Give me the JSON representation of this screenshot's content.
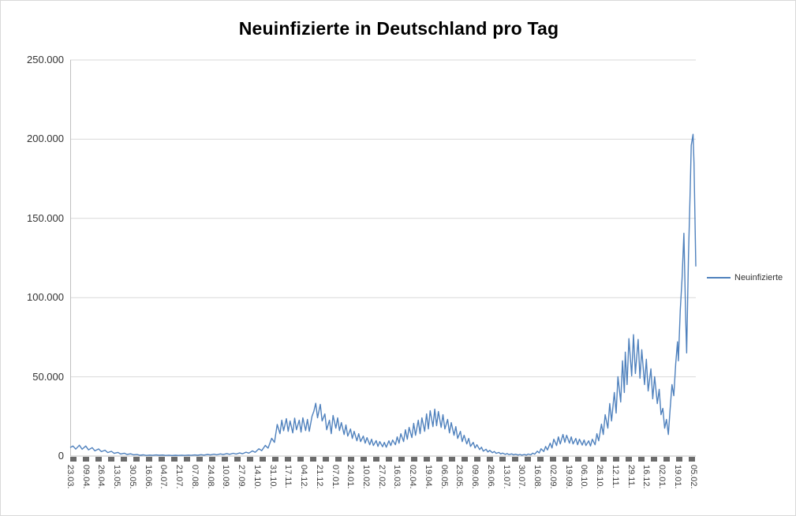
{
  "chart_data": {
    "type": "line",
    "title": "Neuinfizierte in Deutschland pro Tag",
    "xlabel": "",
    "ylabel": "",
    "ylim": [
      0,
      250000
    ],
    "grid": "horizontal",
    "legend_position": "right",
    "x_count": 684,
    "x_tick_step": 17,
    "y_tick_labels": [
      "0",
      "50.000",
      "100.000",
      "150.000",
      "200.000",
      "250.000"
    ],
    "x_tick_labels": [
      "23.03.",
      "09.04.",
      "26.04.",
      "13.05.",
      "30.05.",
      "16.06.",
      "04.07.",
      "21.07.",
      "07.08.",
      "24.08.",
      "10.09.",
      "27.09.",
      "14.10.",
      "31.10.",
      "17.11.",
      "04.12.",
      "21.12.",
      "07.01.",
      "24.01.",
      "10.02.",
      "27.02.",
      "16.03.",
      "02.04.",
      "19.04.",
      "06.05.",
      "23.05.",
      "09.06.",
      "26.06.",
      "13.07.",
      "30.07.",
      "16.08.",
      "02.09.",
      "19.09.",
      "06.10.",
      "26.10.",
      "12.11.",
      "29.11.",
      "16.12.",
      "02.01.",
      "19.01.",
      "05.02."
    ],
    "series": [
      {
        "name": "Neuinfizierte",
        "color": "#4F81BD",
        "points": [
          [
            0,
            5400
          ],
          [
            3,
            6300
          ],
          [
            6,
            4400
          ],
          [
            10,
            6800
          ],
          [
            13,
            4300
          ],
          [
            17,
            6300
          ],
          [
            20,
            3900
          ],
          [
            24,
            5300
          ],
          [
            27,
            3300
          ],
          [
            31,
            4500
          ],
          [
            34,
            2800
          ],
          [
            38,
            3700
          ],
          [
            41,
            2200
          ],
          [
            45,
            3000
          ],
          [
            48,
            1700
          ],
          [
            52,
            2300
          ],
          [
            55,
            1300
          ],
          [
            59,
            1800
          ],
          [
            62,
            1000
          ],
          [
            66,
            1400
          ],
          [
            69,
            800
          ],
          [
            73,
            950
          ],
          [
            76,
            500
          ],
          [
            80,
            750
          ],
          [
            83,
            420
          ],
          [
            87,
            620
          ],
          [
            90,
            430
          ],
          [
            94,
            700
          ],
          [
            97,
            480
          ],
          [
            101,
            650
          ],
          [
            104,
            400
          ],
          [
            108,
            560
          ],
          [
            111,
            350
          ],
          [
            115,
            520
          ],
          [
            118,
            380
          ],
          [
            122,
            540
          ],
          [
            125,
            400
          ],
          [
            129,
            620
          ],
          [
            132,
            460
          ],
          [
            136,
            720
          ],
          [
            139,
            520
          ],
          [
            143,
            830
          ],
          [
            146,
            600
          ],
          [
            150,
            980
          ],
          [
            153,
            720
          ],
          [
            157,
            1150
          ],
          [
            160,
            820
          ],
          [
            164,
            1350
          ],
          [
            167,
            960
          ],
          [
            171,
            1550
          ],
          [
            174,
            1120
          ],
          [
            178,
            1750
          ],
          [
            181,
            1250
          ],
          [
            185,
            1950
          ],
          [
            188,
            1420
          ],
          [
            192,
            2450
          ],
          [
            195,
            1820
          ],
          [
            199,
            3250
          ],
          [
            202,
            2400
          ],
          [
            206,
            4600
          ],
          [
            209,
            3400
          ],
          [
            213,
            6700
          ],
          [
            216,
            5000
          ],
          [
            220,
            11200
          ],
          [
            223,
            8600
          ],
          [
            226,
            19900
          ],
          [
            229,
            14100
          ],
          [
            231,
            22600
          ],
          [
            233,
            16000
          ],
          [
            236,
            23600
          ],
          [
            238,
            15600
          ],
          [
            240,
            22100
          ],
          [
            243,
            14600
          ],
          [
            245,
            23900
          ],
          [
            247,
            16600
          ],
          [
            250,
            22600
          ],
          [
            252,
            15100
          ],
          [
            254,
            24100
          ],
          [
            257,
            16100
          ],
          [
            259,
            23100
          ],
          [
            261,
            15600
          ],
          [
            264,
            25100
          ],
          [
            266,
            28200
          ],
          [
            268,
            33300
          ],
          [
            270,
            24100
          ],
          [
            273,
            32600
          ],
          [
            275,
            22100
          ],
          [
            278,
            26600
          ],
          [
            280,
            16600
          ],
          [
            283,
            22600
          ],
          [
            285,
            14100
          ],
          [
            287,
            25600
          ],
          [
            290,
            17600
          ],
          [
            292,
            24100
          ],
          [
            294,
            16100
          ],
          [
            296,
            21100
          ],
          [
            299,
            13600
          ],
          [
            301,
            19600
          ],
          [
            303,
            12600
          ],
          [
            306,
            17100
          ],
          [
            308,
            11100
          ],
          [
            310,
            15600
          ],
          [
            313,
            9600
          ],
          [
            315,
            14100
          ],
          [
            317,
            9100
          ],
          [
            320,
            12600
          ],
          [
            322,
            8100
          ],
          [
            324,
            11600
          ],
          [
            327,
            7100
          ],
          [
            329,
            10600
          ],
          [
            331,
            6600
          ],
          [
            334,
            9700
          ],
          [
            336,
            6100
          ],
          [
            338,
            9100
          ],
          [
            341,
            5900
          ],
          [
            343,
            8600
          ],
          [
            345,
            5600
          ],
          [
            348,
            9600
          ],
          [
            350,
            6600
          ],
          [
            352,
            10100
          ],
          [
            355,
            7100
          ],
          [
            357,
            12100
          ],
          [
            359,
            8100
          ],
          [
            361,
            14100
          ],
          [
            364,
            9100
          ],
          [
            366,
            16600
          ],
          [
            368,
            10600
          ],
          [
            370,
            18100
          ],
          [
            373,
            11600
          ],
          [
            375,
            20600
          ],
          [
            377,
            13100
          ],
          [
            380,
            22600
          ],
          [
            382,
            14100
          ],
          [
            384,
            24100
          ],
          [
            387,
            15600
          ],
          [
            389,
            26600
          ],
          [
            391,
            17100
          ],
          [
            393,
            28600
          ],
          [
            396,
            18600
          ],
          [
            398,
            29600
          ],
          [
            400,
            19100
          ],
          [
            402,
            28100
          ],
          [
            405,
            18100
          ],
          [
            407,
            26100
          ],
          [
            409,
            17100
          ],
          [
            412,
            23100
          ],
          [
            414,
            14600
          ],
          [
            416,
            21100
          ],
          [
            419,
            13100
          ],
          [
            421,
            18600
          ],
          [
            423,
            11100
          ],
          [
            426,
            15600
          ],
          [
            428,
            9100
          ],
          [
            430,
            13100
          ],
          [
            433,
            7600
          ],
          [
            435,
            11100
          ],
          [
            437,
            6100
          ],
          [
            440,
            8600
          ],
          [
            442,
            5100
          ],
          [
            444,
            7100
          ],
          [
            447,
            4100
          ],
          [
            449,
            5600
          ],
          [
            451,
            3100
          ],
          [
            454,
            4300
          ],
          [
            456,
            2600
          ],
          [
            458,
            3600
          ],
          [
            461,
            2100
          ],
          [
            463,
            2900
          ],
          [
            465,
            1700
          ],
          [
            468,
            2300
          ],
          [
            470,
            1350
          ],
          [
            472,
            1850
          ],
          [
            475,
            1050
          ],
          [
            477,
            1550
          ],
          [
            479,
            900
          ],
          [
            482,
            1350
          ],
          [
            484,
            750
          ],
          [
            486,
            1150
          ],
          [
            489,
            640
          ],
          [
            491,
            990
          ],
          [
            493,
            580
          ],
          [
            496,
            940
          ],
          [
            498,
            620
          ],
          [
            500,
            1250
          ],
          [
            503,
            820
          ],
          [
            505,
            1850
          ],
          [
            507,
            1150
          ],
          [
            510,
            3050
          ],
          [
            512,
            1950
          ],
          [
            514,
            4600
          ],
          [
            517,
            2850
          ],
          [
            519,
            6100
          ],
          [
            521,
            3850
          ],
          [
            524,
            8100
          ],
          [
            526,
            5100
          ],
          [
            528,
            10600
          ],
          [
            531,
            6600
          ],
          [
            533,
            12100
          ],
          [
            535,
            7600
          ],
          [
            538,
            13600
          ],
          [
            540,
            8600
          ],
          [
            542,
            13100
          ],
          [
            545,
            8100
          ],
          [
            547,
            12100
          ],
          [
            549,
            7600
          ],
          [
            552,
            11100
          ],
          [
            554,
            7100
          ],
          [
            556,
            10600
          ],
          [
            559,
            6900
          ],
          [
            561,
            10100
          ],
          [
            563,
            6600
          ],
          [
            566,
            9600
          ],
          [
            568,
            6300
          ],
          [
            570,
            10600
          ],
          [
            573,
            7100
          ],
          [
            575,
            14100
          ],
          [
            577,
            9600
          ],
          [
            580,
            20100
          ],
          [
            582,
            13600
          ],
          [
            584,
            26100
          ],
          [
            587,
            17600
          ],
          [
            589,
            33100
          ],
          [
            591,
            22100
          ],
          [
            594,
            40100
          ],
          [
            596,
            27100
          ],
          [
            598,
            50100
          ],
          [
            601,
            34100
          ],
          [
            603,
            60100
          ],
          [
            605,
            40100
          ],
          [
            606,
            65600
          ],
          [
            608,
            45100
          ],
          [
            610,
            74100
          ],
          [
            613,
            50600
          ],
          [
            615,
            76600
          ],
          [
            617,
            52100
          ],
          [
            620,
            73600
          ],
          [
            622,
            49100
          ],
          [
            624,
            67100
          ],
          [
            627,
            45100
          ],
          [
            629,
            61100
          ],
          [
            631,
            41100
          ],
          [
            634,
            55100
          ],
          [
            636,
            36100
          ],
          [
            638,
            50100
          ],
          [
            641,
            33100
          ],
          [
            643,
            42100
          ],
          [
            645,
            26100
          ],
          [
            647,
            30100
          ],
          [
            649,
            17600
          ],
          [
            651,
            23100
          ],
          [
            653,
            13600
          ],
          [
            655,
            30100
          ],
          [
            657,
            45100
          ],
          [
            659,
            38100
          ],
          [
            661,
            58100
          ],
          [
            663,
            72100
          ],
          [
            664,
            60100
          ],
          [
            666,
            92100
          ],
          [
            668,
            112100
          ],
          [
            670,
            140600
          ],
          [
            672,
            86100
          ],
          [
            673,
            65100
          ],
          [
            675,
            126100
          ],
          [
            677,
            170100
          ],
          [
            678,
            196100
          ],
          [
            680,
            203100
          ],
          [
            681,
            185100
          ],
          [
            683,
            119600
          ]
        ]
      }
    ]
  },
  "legend": {
    "label": "Neuinfizierte"
  },
  "colors": {
    "line": "#4F81BD",
    "gridline": "#D9D9D9",
    "axis": "#BFBFBF",
    "tick_dash": "#6B6B6B"
  }
}
